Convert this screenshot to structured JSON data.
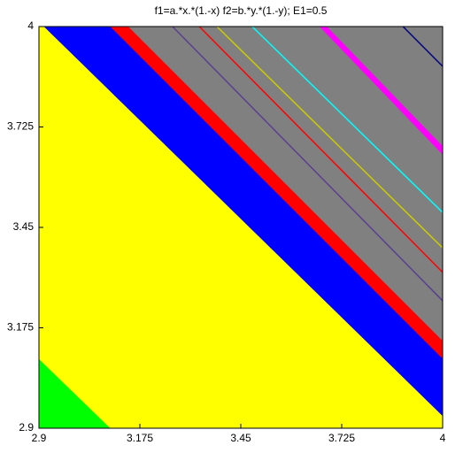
{
  "chart_data": {
    "type": "region",
    "title": "f1=a.*x.*(1.-x)   f2=b.*y.*(1.-y); E1=0.5",
    "xlim": [
      2.9,
      4
    ],
    "ylim": [
      2.9,
      4
    ],
    "xticks": [
      2.9,
      3.175,
      3.45,
      3.725,
      4
    ],
    "yticks": [
      2.9,
      3.175,
      3.45,
      3.725,
      4
    ],
    "regions": [
      {
        "color": "#00ff00",
        "x": [
          2.9,
          3.095,
          2.9
        ],
        "y": [
          2.9,
          2.9,
          3.09
        ]
      },
      {
        "color": "#ffff00",
        "x": [
          2.9,
          3.095,
          4,
          4,
          2.914,
          2.9
        ],
        "y": [
          3.09,
          2.9,
          2.9,
          2.934,
          4,
          4
        ]
      },
      {
        "color": "#0000ff",
        "x": [
          2.914,
          4,
          4,
          3.095
        ],
        "y": [
          4,
          2.934,
          3.091,
          4
        ]
      },
      {
        "color": "#ff0000",
        "x": [
          3.095,
          4,
          4,
          3.144
        ],
        "y": [
          4,
          3.091,
          3.14,
          4
        ]
      },
      {
        "color": "#808080",
        "x": [
          3.144,
          4,
          4
        ],
        "y": [
          4,
          3.14,
          4
        ]
      },
      {
        "color": "#ff00ff",
        "x": [
          3.665,
          3.684,
          4,
          4
        ],
        "y": [
          4,
          4,
          3.672,
          3.65
        ]
      }
    ],
    "lines": [
      {
        "color": "#5a3f8f",
        "x": [
          3.264,
          4
        ],
        "y": [
          4,
          3.249
        ]
      },
      {
        "color": "#ff0000",
        "x": [
          3.337,
          4
        ],
        "y": [
          4,
          3.327
        ]
      },
      {
        "color": "#cccc00",
        "x": [
          3.385,
          4
        ],
        "y": [
          4,
          3.394
        ]
      },
      {
        "color": "#00ffff",
        "x": [
          3.481,
          4
        ],
        "y": [
          4,
          3.491
        ]
      },
      {
        "color": "#000080",
        "x": [
          3.892,
          4
        ],
        "y": [
          4,
          3.891
        ]
      }
    ]
  }
}
